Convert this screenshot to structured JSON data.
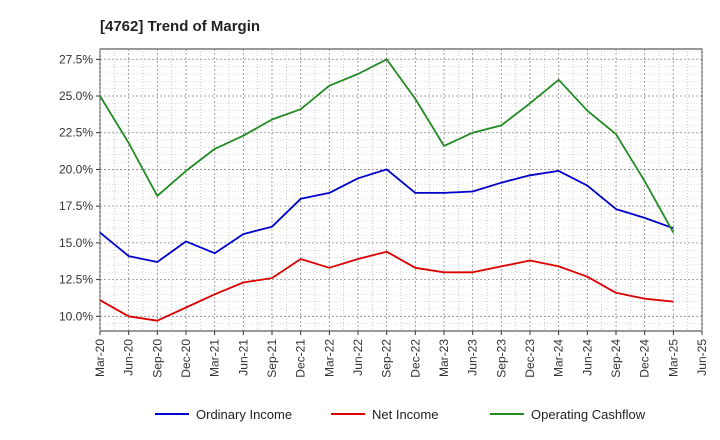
{
  "chart_data": {
    "type": "line",
    "title": "[4762]  Trend of Margin",
    "xlabel": "",
    "ylabel": "",
    "x_tick_labels": [
      "Mar-20",
      "Jun-20",
      "Sep-20",
      "Dec-20",
      "Mar-21",
      "Jun-21",
      "Sep-21",
      "Dec-21",
      "Mar-22",
      "Jun-22",
      "Sep-22",
      "Dec-22",
      "Mar-23",
      "Jun-23",
      "Sep-23",
      "Dec-23",
      "Mar-24",
      "Jun-24",
      "Sep-24",
      "Dec-24",
      "Mar-25",
      "Jun-25"
    ],
    "categories": [
      "Mar-20",
      "Jun-20",
      "Sep-20",
      "Dec-20",
      "Mar-21",
      "Jun-21",
      "Sep-21",
      "Dec-21",
      "Mar-22",
      "Jun-22",
      "Sep-22",
      "Dec-22",
      "Mar-23",
      "Jun-23",
      "Sep-23",
      "Dec-23",
      "Mar-24",
      "Jun-24",
      "Sep-24",
      "Dec-24",
      "Mar-25"
    ],
    "y_tick_labels": [
      "10.0%",
      "12.5%",
      "15.0%",
      "17.5%",
      "20.0%",
      "22.5%",
      "25.0%",
      "27.5%"
    ],
    "y_ticks": [
      10.0,
      12.5,
      15.0,
      17.5,
      20.0,
      22.5,
      25.0,
      27.5
    ],
    "ylim": [
      9.0,
      28.2
    ],
    "grid": true,
    "legend_position": "bottom",
    "series": [
      {
        "name": "Ordinary Income",
        "color": "#0000cc",
        "values": [
          15.7,
          14.1,
          13.7,
          15.1,
          14.3,
          15.6,
          16.1,
          18.0,
          18.4,
          19.4,
          20.0,
          18.4,
          18.4,
          18.5,
          19.1,
          19.6,
          19.9,
          18.9,
          17.3,
          16.7,
          16.0
        ]
      },
      {
        "name": "Net Income",
        "color": "#dd0000",
        "values": [
          11.1,
          10.0,
          9.7,
          10.6,
          11.5,
          12.3,
          12.6,
          13.9,
          13.3,
          13.9,
          14.4,
          13.3,
          13.0,
          13.0,
          13.4,
          13.8,
          13.4,
          12.7,
          11.6,
          11.2,
          11.0
        ]
      },
      {
        "name": "Operating Cashflow",
        "color": "#228b22",
        "values": [
          25.0,
          21.8,
          18.2,
          19.9,
          21.4,
          22.3,
          23.4,
          24.1,
          25.7,
          26.5,
          27.5,
          24.8,
          21.6,
          22.5,
          23.0,
          24.5,
          26.1,
          24.0,
          22.4,
          19.2,
          15.7
        ]
      }
    ]
  }
}
